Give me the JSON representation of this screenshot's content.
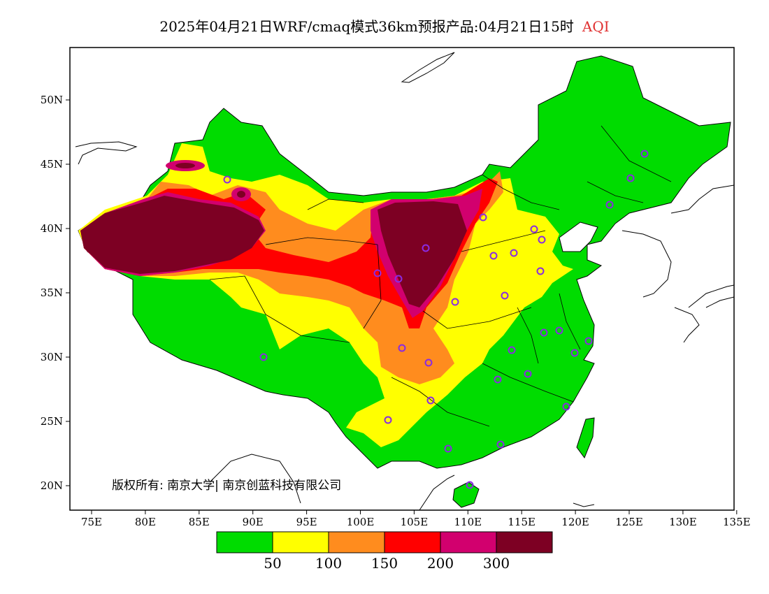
{
  "title": {
    "main": "2025年04月21日WRF/cmaq模式36km预报产品:04月21日15时",
    "variable": "AQI",
    "variable_color": "#e03030"
  },
  "axes": {
    "x_ticks": [
      "75E",
      "80E",
      "85E",
      "90E",
      "95E",
      "100E",
      "105E",
      "110E",
      "115E",
      "120E",
      "125E",
      "130E",
      "135E"
    ],
    "y_ticks": [
      "50N",
      "45N",
      "40N",
      "35N",
      "30N",
      "25N",
      "20N"
    ]
  },
  "legend": {
    "colors": [
      "#00dc00",
      "#ffff00",
      "#ff8c1e",
      "#ff0000",
      "#d2006e",
      "#7d0023"
    ],
    "labels": [
      "50",
      "100",
      "150",
      "200",
      "300"
    ]
  },
  "copyright": "版权所有: 南京大学| 南京创蓝科技有限公司",
  "colors": {
    "good": "#00dc00",
    "moderate": "#ffff00",
    "unhealthy_sensitive": "#ff8c1e",
    "unhealthy": "#ff0000",
    "very_unhealthy": "#d2006e",
    "hazardous": "#7d0023",
    "station_marker": "#8a2be2"
  }
}
